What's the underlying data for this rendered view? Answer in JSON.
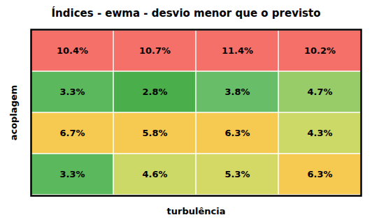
{
  "chart_data": {
    "type": "heatmap",
    "title": "Índices - ewma - desvio menor que o previsto",
    "xlabel": "turbulência",
    "ylabel": "acoplagem",
    "values": [
      [
        10.4,
        10.7,
        11.4,
        10.2
      ],
      [
        3.3,
        2.8,
        3.8,
        4.7
      ],
      [
        6.7,
        5.8,
        6.3,
        4.3
      ],
      [
        3.3,
        4.6,
        5.3,
        6.3
      ]
    ],
    "value_labels": [
      [
        "10.4%",
        "10.7%",
        "11.4%",
        "10.2%"
      ],
      [
        "3.3%",
        "2.8%",
        "3.8%",
        "4.7%"
      ],
      [
        "6.7%",
        "5.8%",
        "6.3%",
        "4.3%"
      ],
      [
        "3.3%",
        "4.6%",
        "5.3%",
        "6.3%"
      ]
    ],
    "colors": [
      [
        "#f57068",
        "#f57068",
        "#f57068",
        "#f57068"
      ],
      [
        "#5cb85c",
        "#4aaf4a",
        "#68be68",
        "#98cc68"
      ],
      [
        "#f6ca50",
        "#f6ca50",
        "#f6ca50",
        "#ccd966"
      ],
      [
        "#5cb85c",
        "#ccd966",
        "#d4d966",
        "#f6ca50"
      ]
    ],
    "data_labels": true,
    "tick_labels": false,
    "grid": false
  }
}
